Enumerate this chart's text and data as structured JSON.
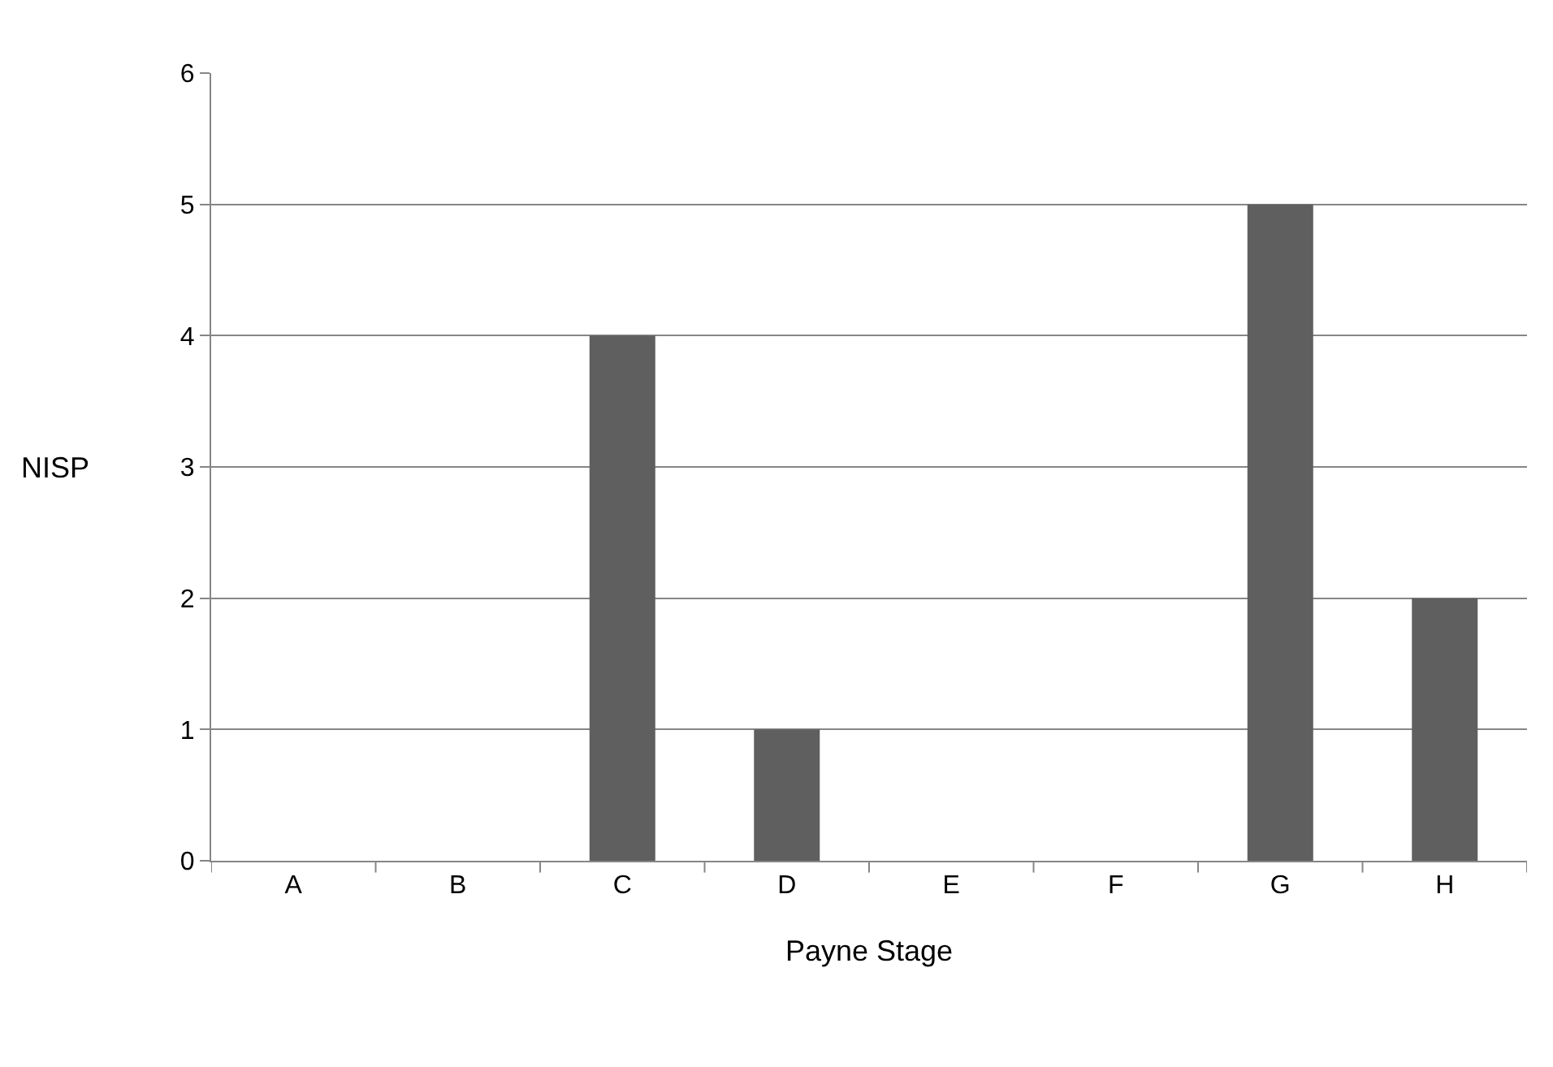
{
  "chart_data": {
    "type": "bar",
    "xlabel": "Payne Stage",
    "ylabel": "NISP",
    "categories": [
      "A",
      "B",
      "C",
      "D",
      "E",
      "F",
      "G",
      "H"
    ],
    "values": [
      0,
      0,
      4,
      1,
      0,
      0,
      5,
      2
    ],
    "color": "#5f5f5f",
    "ylim": [
      0,
      6
    ],
    "yticks": [
      0,
      1,
      2,
      3,
      4,
      5,
      6
    ],
    "grid": "y",
    "legend": false
  }
}
